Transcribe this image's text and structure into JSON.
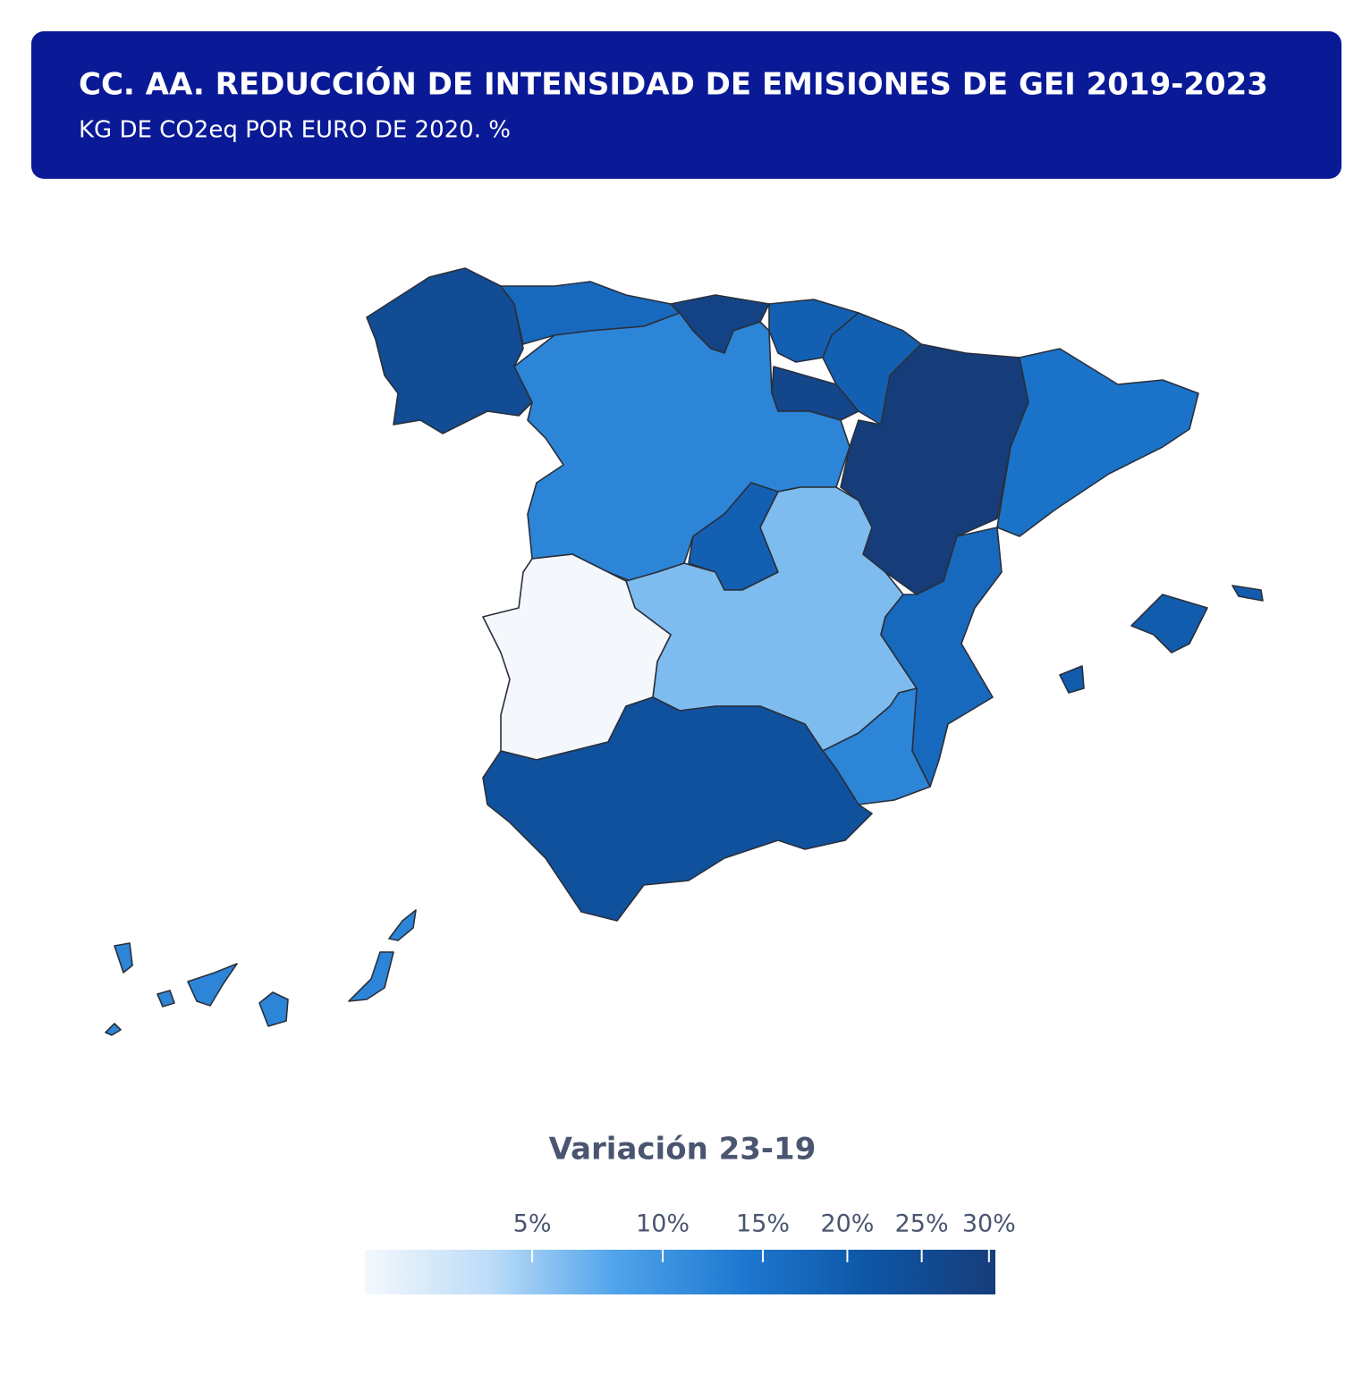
{
  "chart_data": {
    "type": "choropleth",
    "title": "CC. AA. REDUCCIÓN DE INTENSIDAD DE  EMISIONES DE GEI 2019-2023",
    "subtitle": "KG DE CO2eq POR EURO DE 2020. %",
    "legend_title": "Variación 23-19",
    "values": [
      25,
      17,
      28,
      19,
      19,
      27,
      30.5,
      15,
      12,
      19,
      6,
      1.1,
      17,
      12,
      23,
      20,
      12
    ],
    "scale": "sqrt",
    "range": [
      1.1,
      30.5
    ],
    "colormap": [
      "#f4f8fd",
      "#bcdcf8",
      "#4fa3ea",
      "#1e78d0",
      "#0e56a6",
      "#163d7a"
    ],
    "ticks": [
      {
        "value": 5,
        "label": "5%"
      },
      {
        "value": 10,
        "label": "10%"
      },
      {
        "value": 15,
        "label": "15%"
      },
      {
        "value": 20,
        "label": "20%"
      },
      {
        "value": 25,
        "label": "25%"
      },
      {
        "value": 30,
        "label": "30%"
      }
    ]
  }
}
